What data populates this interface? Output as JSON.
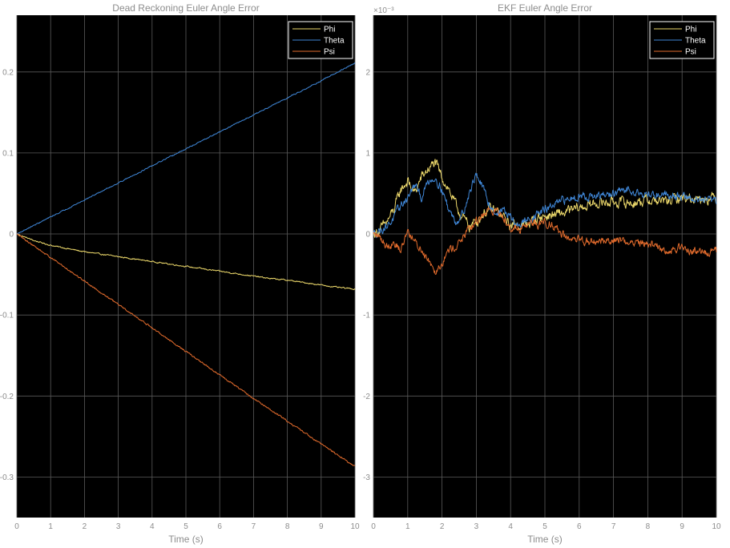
{
  "colors": {
    "figure_background": "#ffffff",
    "axes_background": "#000000",
    "grid": "#5a5a5a",
    "text": "#8c8c8c",
    "legend_border": "#ffffff",
    "legend_text": "#ffffff",
    "phi": "#edd96b",
    "theta": "#3f86d6",
    "psi": "#e06a2c"
  },
  "chart_data": [
    {
      "type": "line",
      "title": "Dead Reckoning Euler Angle Error",
      "xlabel": "Time (s)",
      "ylabel": "",
      "xlim": [
        0,
        10
      ],
      "ylim": [
        -0.35,
        0.27
      ],
      "xticks": [
        0,
        1,
        2,
        3,
        4,
        5,
        6,
        7,
        8,
        9,
        10
      ],
      "xtick_labels": [
        "0",
        "1",
        "2",
        "3",
        "4",
        "5",
        "6",
        "7",
        "8",
        "9",
        "10"
      ],
      "yticks": [
        -0.3,
        -0.2,
        -0.1,
        0,
        0.1,
        0.2
      ],
      "ytick_labels": [
        "-0.3",
        "-0.2",
        "-0.1",
        "0",
        "0.1",
        "0.2"
      ],
      "exponent_label": "",
      "grid": true,
      "legend": "top-right",
      "series": [
        {
          "name": "Phi",
          "color": "#edd96b",
          "noise": 0.0006,
          "x": [
            0,
            0.5,
            1,
            1.5,
            2,
            2.5,
            3,
            3.5,
            4,
            4.5,
            5,
            5.5,
            6,
            6.5,
            7,
            7.5,
            8,
            8.5,
            9,
            9.5,
            10
          ],
          "y": [
            0,
            -0.008,
            -0.014,
            -0.018,
            -0.022,
            -0.025,
            -0.028,
            -0.031,
            -0.034,
            -0.037,
            -0.04,
            -0.043,
            -0.046,
            -0.049,
            -0.052,
            -0.055,
            -0.057,
            -0.06,
            -0.063,
            -0.066,
            -0.068
          ]
        },
        {
          "name": "Theta",
          "color": "#3f86d6",
          "noise": 0.0005,
          "x": [
            0,
            1,
            2,
            3,
            4,
            5,
            6,
            7,
            8,
            9,
            10
          ],
          "y": [
            0,
            0.021,
            0.042,
            0.063,
            0.084,
            0.105,
            0.126,
            0.147,
            0.168,
            0.189,
            0.211
          ]
        },
        {
          "name": "Psi",
          "color": "#e06a2c",
          "noise": 0.0008,
          "x": [
            0,
            1,
            2,
            3,
            4,
            5,
            6,
            7,
            8,
            9,
            10
          ],
          "y": [
            0,
            -0.029,
            -0.058,
            -0.087,
            -0.116,
            -0.145,
            -0.174,
            -0.203,
            -0.231,
            -0.259,
            -0.287
          ]
        }
      ]
    },
    {
      "type": "line",
      "title": "EKF Euler Angle Error",
      "xlabel": "Time (s)",
      "ylabel": "",
      "xlim": [
        0,
        10
      ],
      "ylim": [
        -3.5,
        2.7
      ],
      "xticks": [
        0,
        1,
        2,
        3,
        4,
        5,
        6,
        7,
        8,
        9,
        10
      ],
      "xtick_labels": [
        "0",
        "1",
        "2",
        "3",
        "4",
        "5",
        "6",
        "7",
        "8",
        "9",
        "10"
      ],
      "yticks": [
        -3,
        -2,
        -1,
        0,
        1,
        2
      ],
      "ytick_labels": [
        "-3",
        "-2",
        "-1",
        "0",
        "1",
        "2"
      ],
      "exponent_label": "×10⁻³",
      "grid": true,
      "legend": "top-right",
      "series": [
        {
          "name": "Phi",
          "color": "#edd96b",
          "noise": 0.05,
          "x": [
            0,
            0.2,
            0.4,
            0.6,
            0.8,
            1.0,
            1.2,
            1.4,
            1.6,
            1.8,
            2.0,
            2.2,
            2.4,
            2.6,
            2.8,
            3.0,
            3.2,
            3.4,
            3.6,
            3.8,
            4.0,
            4.2,
            4.4,
            4.6,
            4.8,
            5.0,
            5.5,
            6.0,
            6.5,
            7.0,
            7.5,
            8.0,
            8.5,
            9.0,
            9.5,
            10.0
          ],
          "y": [
            0,
            0.05,
            0.15,
            0.3,
            0.55,
            0.65,
            0.5,
            0.7,
            0.8,
            0.88,
            0.7,
            0.55,
            0.35,
            0.2,
            0.1,
            0.15,
            0.25,
            0.3,
            0.28,
            0.2,
            0.1,
            0.12,
            0.1,
            0.15,
            0.2,
            0.22,
            0.25,
            0.32,
            0.38,
            0.4,
            0.38,
            0.42,
            0.4,
            0.45,
            0.44,
            0.45
          ]
        },
        {
          "name": "Theta",
          "color": "#3f86d6",
          "noise": 0.04,
          "x": [
            0,
            0.2,
            0.4,
            0.6,
            0.8,
            1.0,
            1.2,
            1.4,
            1.6,
            1.8,
            2.0,
            2.2,
            2.4,
            2.6,
            2.8,
            3.0,
            3.2,
            3.4,
            3.6,
            3.8,
            4.0,
            4.2,
            4.4,
            4.6,
            4.8,
            5.0,
            5.5,
            6.0,
            6.5,
            7.0,
            7.5,
            8.0,
            8.5,
            9.0,
            9.5,
            10.0
          ],
          "y": [
            0,
            0.05,
            0.1,
            0.2,
            0.35,
            0.45,
            0.6,
            0.45,
            0.65,
            0.7,
            0.55,
            0.3,
            0.15,
            0.25,
            0.5,
            0.75,
            0.55,
            0.35,
            0.25,
            0.3,
            0.2,
            0.1,
            0.15,
            0.2,
            0.25,
            0.3,
            0.4,
            0.48,
            0.45,
            0.5,
            0.55,
            0.48,
            0.5,
            0.46,
            0.42,
            0.4
          ]
        },
        {
          "name": "Psi",
          "color": "#e06a2c",
          "noise": 0.04,
          "x": [
            0,
            0.2,
            0.4,
            0.6,
            0.8,
            1.0,
            1.2,
            1.4,
            1.6,
            1.8,
            2.0,
            2.2,
            2.4,
            2.6,
            2.8,
            3.0,
            3.2,
            3.4,
            3.6,
            3.8,
            4.0,
            4.2,
            4.4,
            4.6,
            4.8,
            5.0,
            5.2,
            5.4,
            5.6,
            5.8,
            6.0,
            6.5,
            7.0,
            7.5,
            8.0,
            8.5,
            9.0,
            9.5,
            10.0
          ],
          "y": [
            0,
            -0.05,
            -0.15,
            -0.1,
            -0.2,
            0.05,
            -0.1,
            -0.2,
            -0.3,
            -0.45,
            -0.35,
            -0.2,
            -0.15,
            -0.05,
            0.05,
            0.15,
            0.25,
            0.3,
            0.28,
            0.2,
            0.1,
            0.05,
            0.1,
            0.15,
            0.12,
            0.15,
            0.12,
            0.05,
            -0.05,
            -0.1,
            -0.08,
            -0.1,
            -0.07,
            -0.1,
            -0.12,
            -0.2,
            -0.18,
            -0.22,
            -0.22
          ]
        }
      ]
    }
  ]
}
